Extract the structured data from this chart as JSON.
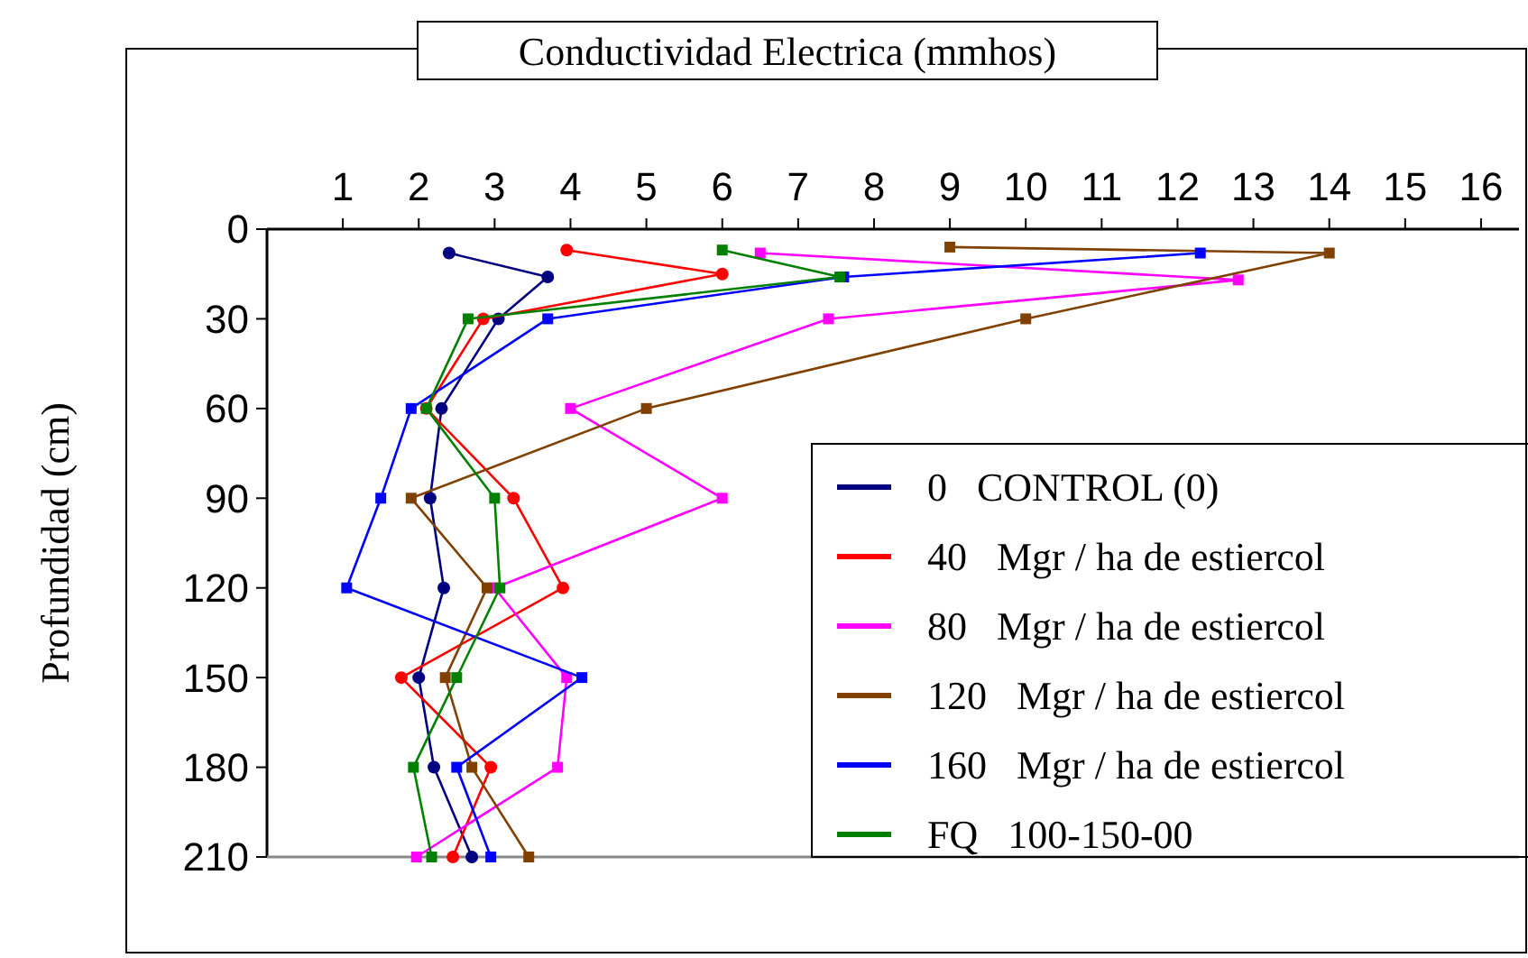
{
  "chart_data": {
    "type": "line",
    "title": "Conductividad Electrica (mmhos)",
    "ylabel": "Profundidad (cm)",
    "xlim": [
      0,
      16.5
    ],
    "xticks": [
      1,
      2,
      3,
      4,
      5,
      6,
      7,
      8,
      9,
      10,
      11,
      12,
      13,
      14,
      15,
      16
    ],
    "ylim": [
      210,
      0
    ],
    "yticks": [
      0,
      30,
      60,
      90,
      120,
      150,
      180,
      210
    ],
    "grid": false,
    "legend": "bottom right",
    "line_style": "solid",
    "series": [
      {
        "name": "0 CONTROL (0)",
        "color": "#000080",
        "marker": "circle",
        "x": [
          2.4,
          3.7,
          3.05,
          2.3,
          2.15,
          2.33,
          2.0,
          2.2,
          2.7
        ],
        "values": [
          8,
          16,
          30,
          60,
          90,
          120,
          150,
          180,
          210
        ]
      },
      {
        "name": "40 Mgr / ha de estiercol",
        "color": "#ff0000",
        "marker": "circle",
        "x": [
          3.95,
          6.0,
          2.85,
          2.1,
          3.25,
          3.9,
          1.77,
          2.95,
          2.45
        ],
        "values": [
          7,
          15,
          30,
          60,
          90,
          120,
          150,
          180,
          210
        ]
      },
      {
        "name": "80 Mgr / ha de estiercol",
        "color": "#ff00ff",
        "marker": "square",
        "x": [
          6.5,
          12.8,
          7.4,
          4.0,
          6.0,
          3.0,
          3.95,
          3.83,
          1.97
        ],
        "values": [
          8,
          17,
          30,
          60,
          90,
          120,
          150,
          180,
          210
        ]
      },
      {
        "name": "120 Mgr / ha de estiercol",
        "color": "#804000",
        "marker": "square",
        "x": [
          9.0,
          14.0,
          10.0,
          5.0,
          1.9,
          2.9,
          2.35,
          2.7,
          3.45
        ],
        "values": [
          6,
          8,
          30,
          60,
          90,
          120,
          150,
          180,
          210
        ]
      },
      {
        "name": "160 Mgr / ha de estiercol",
        "color": "#0000ff",
        "marker": "square",
        "x": [
          12.3,
          7.6,
          3.7,
          1.9,
          1.5,
          1.05,
          4.15,
          2.5,
          2.95
        ],
        "values": [
          8,
          16,
          30,
          60,
          90,
          120,
          150,
          180,
          210
        ]
      },
      {
        "name": "FQ 100-150-00",
        "color": "#008000",
        "marker": "square",
        "x": [
          6.0,
          7.55,
          2.65,
          2.1,
          3.0,
          3.07,
          2.5,
          1.93,
          2.17
        ],
        "values": [
          7,
          16,
          30,
          60,
          90,
          120,
          150,
          180,
          210
        ]
      }
    ]
  }
}
